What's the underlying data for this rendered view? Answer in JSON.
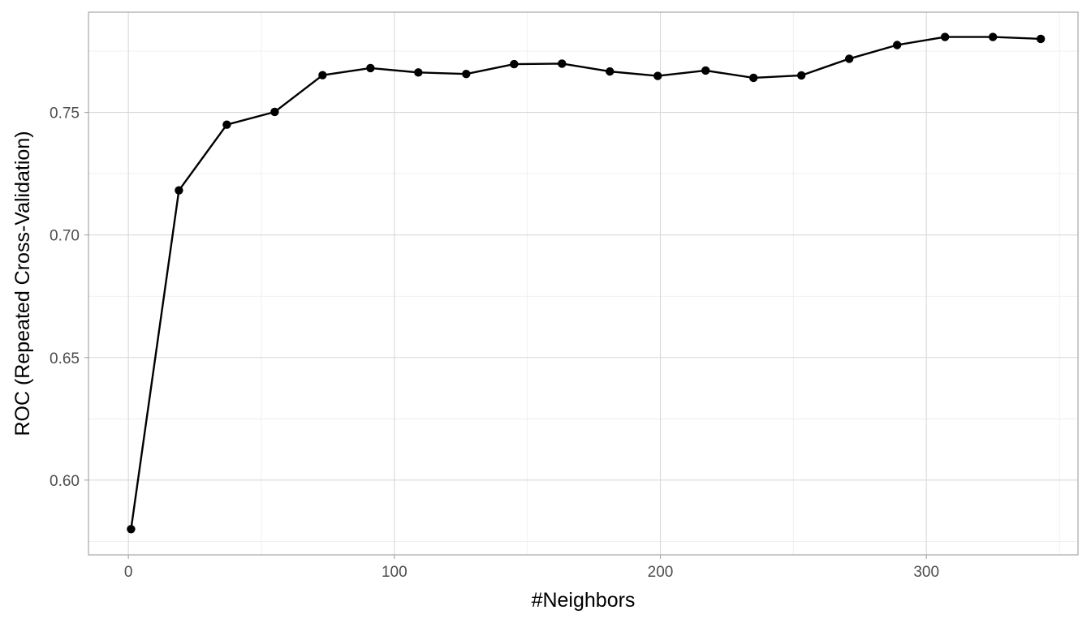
{
  "chart_data": {
    "type": "line",
    "title": "",
    "xlabel": "#Neighbors",
    "ylabel": "ROC (Repeated Cross-Validation)",
    "xlim": [
      -15,
      357
    ],
    "ylim": [
      0.5695,
      0.7909
    ],
    "x_ticks": [
      0,
      100,
      200,
      300
    ],
    "x_tick_labels": [
      "0",
      "100",
      "200",
      "300"
    ],
    "x_minor_ticks": [
      50,
      150,
      250,
      350
    ],
    "y_ticks": [
      0.6,
      0.65,
      0.7,
      0.75
    ],
    "y_tick_labels": [
      "0.60",
      "0.65",
      "0.70",
      "0.75"
    ],
    "y_minor_ticks": [
      0.575,
      0.625,
      0.675,
      0.725,
      0.775
    ],
    "grid": true,
    "legend": "none",
    "colors": {
      "series": "#000000",
      "grid_major": "#d9d9d9",
      "grid_minor": "#ececec",
      "border": "#a6a6a6"
    },
    "series": [
      {
        "x": [
          1,
          19,
          37,
          55,
          73,
          91,
          109,
          127,
          145,
          163,
          181,
          199,
          217,
          235,
          253,
          271,
          289,
          307,
          325,
          343
        ],
        "values": [
          0.58,
          0.7182,
          0.745,
          0.7502,
          0.7652,
          0.7681,
          0.7663,
          0.7657,
          0.7697,
          0.7699,
          0.7667,
          0.7649,
          0.7671,
          0.7641,
          0.7651,
          0.7719,
          0.7775,
          0.7808,
          0.7808,
          0.78
        ]
      }
    ]
  }
}
